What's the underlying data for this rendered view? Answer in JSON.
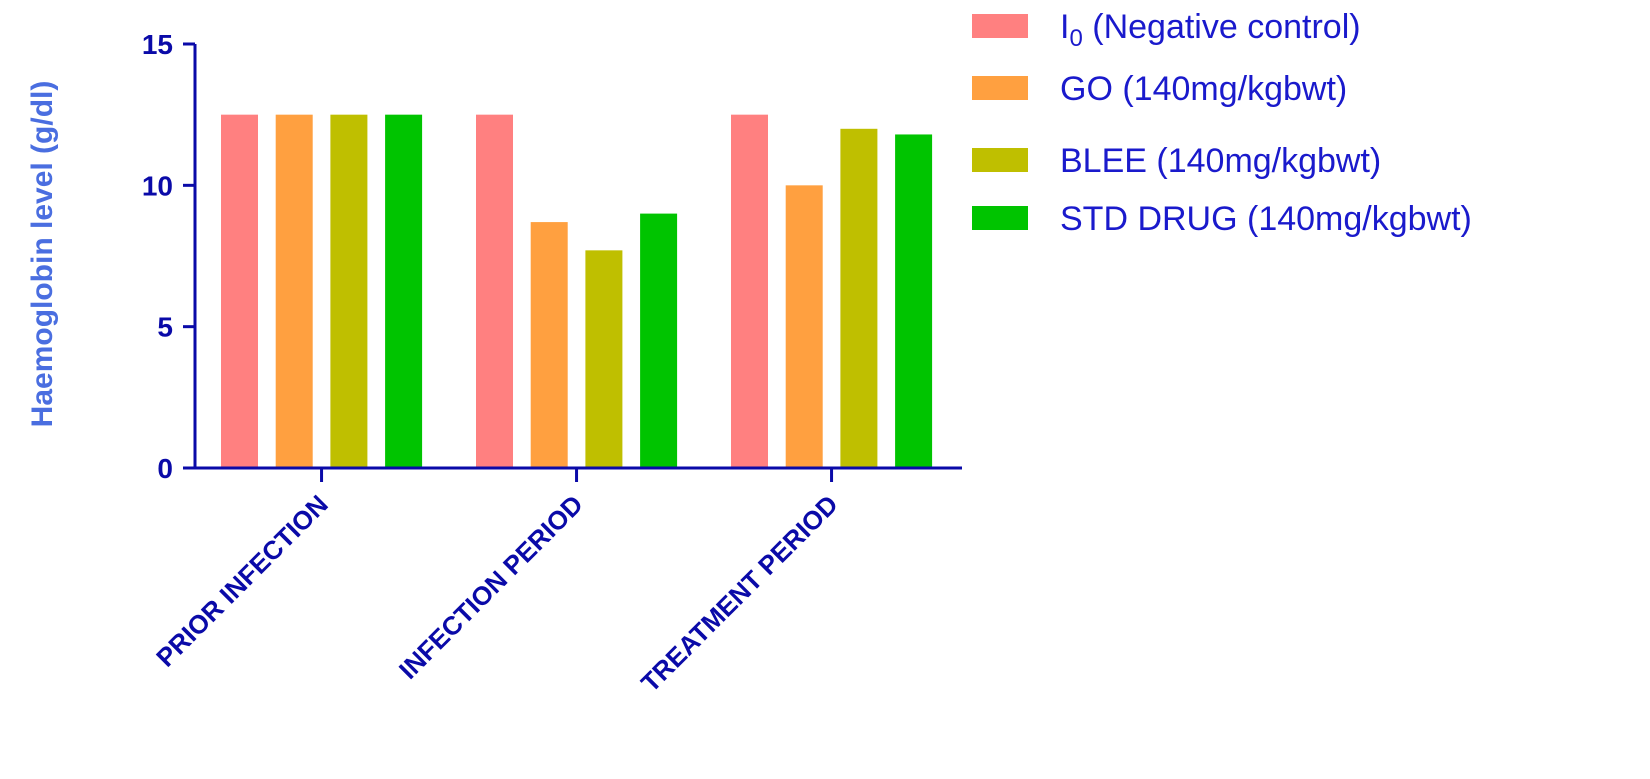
{
  "chart_data": {
    "type": "bar",
    "title": "",
    "xlabel": "",
    "ylabel": "Haemoglobin level (g/dl)",
    "ylim": [
      0,
      15
    ],
    "yticks": [
      0,
      5,
      10,
      15
    ],
    "categories": [
      "PRIOR INFECTION",
      "INFECTION PERIOD",
      "TREATMENT PERIOD"
    ],
    "series": [
      {
        "name": "I0 (Negative control)",
        "legend_main": "I",
        "legend_sub": "0",
        "legend_rest": " (Negative control)",
        "color": "#ff8080",
        "values": [
          12.5,
          12.5,
          12.5
        ]
      },
      {
        "name": "GO (140mg/kgbwt)",
        "color": "#ffa040",
        "values": [
          12.5,
          8.7,
          10.0
        ]
      },
      {
        "name": "BLEE (140mg/kgbwt)",
        "color": "#bfbf00",
        "values": [
          12.5,
          7.7,
          12.0
        ]
      },
      {
        "name": "STD DRUG (140mg/kgbwt)",
        "color": "#00c400",
        "values": [
          12.5,
          9.0,
          11.8
        ]
      }
    ],
    "grid": false,
    "legend_position": "top-right",
    "axis_color": "#0a0aa8",
    "ylabel_color": "#4a6ee0"
  }
}
